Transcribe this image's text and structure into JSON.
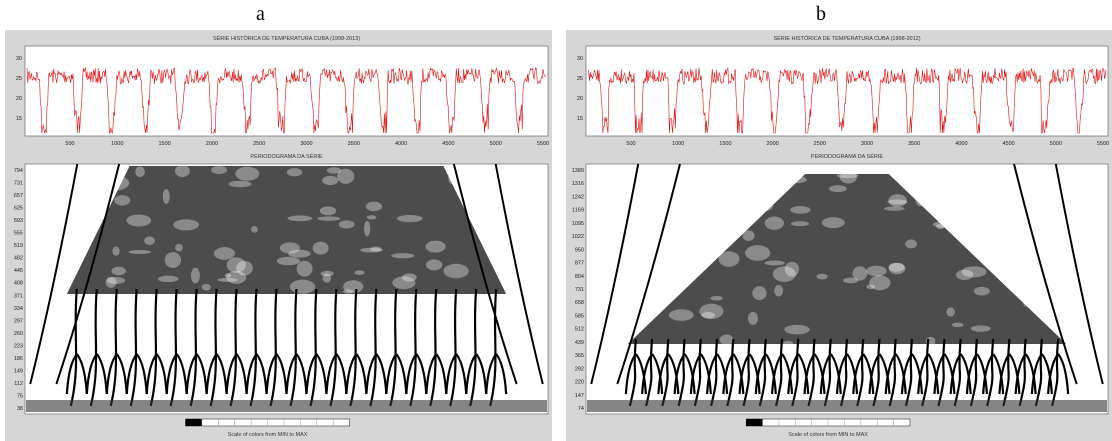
{
  "panels": [
    {
      "label": "a",
      "series_title": "SÉRIE HISTÓRICA DE TEMPERATURA CUBA (1998-2013)",
      "temp_ticks": [
        "30",
        "25",
        "20",
        "15"
      ],
      "time_ticks": [
        "500",
        "1000",
        "1500",
        "2000",
        "2500",
        "3000",
        "3500",
        "4000",
        "4500",
        "5000",
        "5500"
      ],
      "periodogram_title": "PERIODOGRAMA DA SÉRIE",
      "period_ticks": [
        "794",
        "731",
        "657",
        "625",
        "593",
        "555",
        "519",
        "482",
        "445",
        "408",
        "371",
        "334",
        "297",
        "260",
        "223",
        "186",
        "149",
        "112",
        "75",
        "38"
      ],
      "colorbar_caption": "Scale of colors from MIN to MAX"
    },
    {
      "label": "b",
      "series_title": "SÉRIE HISTÓRICA DE TEMPERATURA CUBA (1998-2012)",
      "temp_ticks": [
        "30",
        "25",
        "20",
        "15"
      ],
      "time_ticks": [
        "500",
        "1000",
        "1500",
        "2000",
        "2500",
        "3000",
        "3500",
        "4000",
        "4500",
        "5000",
        "5500"
      ],
      "periodogram_title": "PERIODOGRAMA DA SÉRIE",
      "period_ticks": [
        "1389",
        "1316",
        "1242",
        "1169",
        "1095",
        "1022",
        "950",
        "877",
        "804",
        "731",
        "658",
        "585",
        "512",
        "439",
        "365",
        "292",
        "220",
        "147",
        "74"
      ],
      "colorbar_caption": "Scale of colors from MIN to MAX"
    }
  ]
}
